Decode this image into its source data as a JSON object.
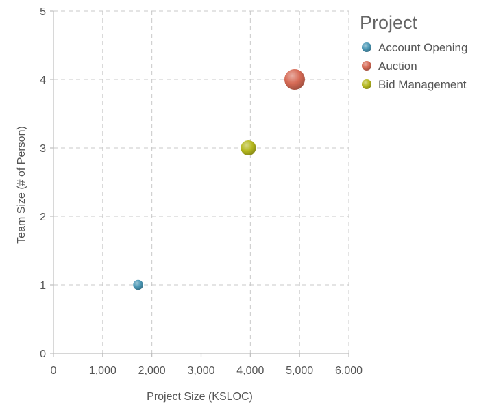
{
  "chart_data": {
    "type": "scatter",
    "variant": "bubble",
    "xlabel": "Project Size (KSLOC)",
    "ylabel": "Team Size (# of Person)",
    "xlim": [
      0,
      6000
    ],
    "ylim": [
      0,
      5
    ],
    "x_ticks": [
      0,
      1000,
      2000,
      3000,
      4000,
      5000,
      6000
    ],
    "x_tick_labels": [
      "0",
      "1,000",
      "2,000",
      "3,000",
      "4,000",
      "5,000",
      "6,000"
    ],
    "y_ticks": [
      0,
      1,
      2,
      3,
      4,
      5
    ],
    "y_tick_labels": [
      "0",
      "1",
      "2",
      "3",
      "4",
      "5"
    ],
    "grid": true,
    "legend": {
      "title": "Project",
      "position": "right"
    },
    "series": [
      {
        "name": "Account Opening",
        "color": "#4a97b5",
        "x": 1720,
        "y": 1,
        "size": 1720
      },
      {
        "name": "Auction",
        "color": "#d66a55",
        "x": 4900,
        "y": 4,
        "size": 4900
      },
      {
        "name": "Bid Management",
        "color": "#b5b81e",
        "x": 3960,
        "y": 3,
        "size": 3960
      }
    ]
  }
}
